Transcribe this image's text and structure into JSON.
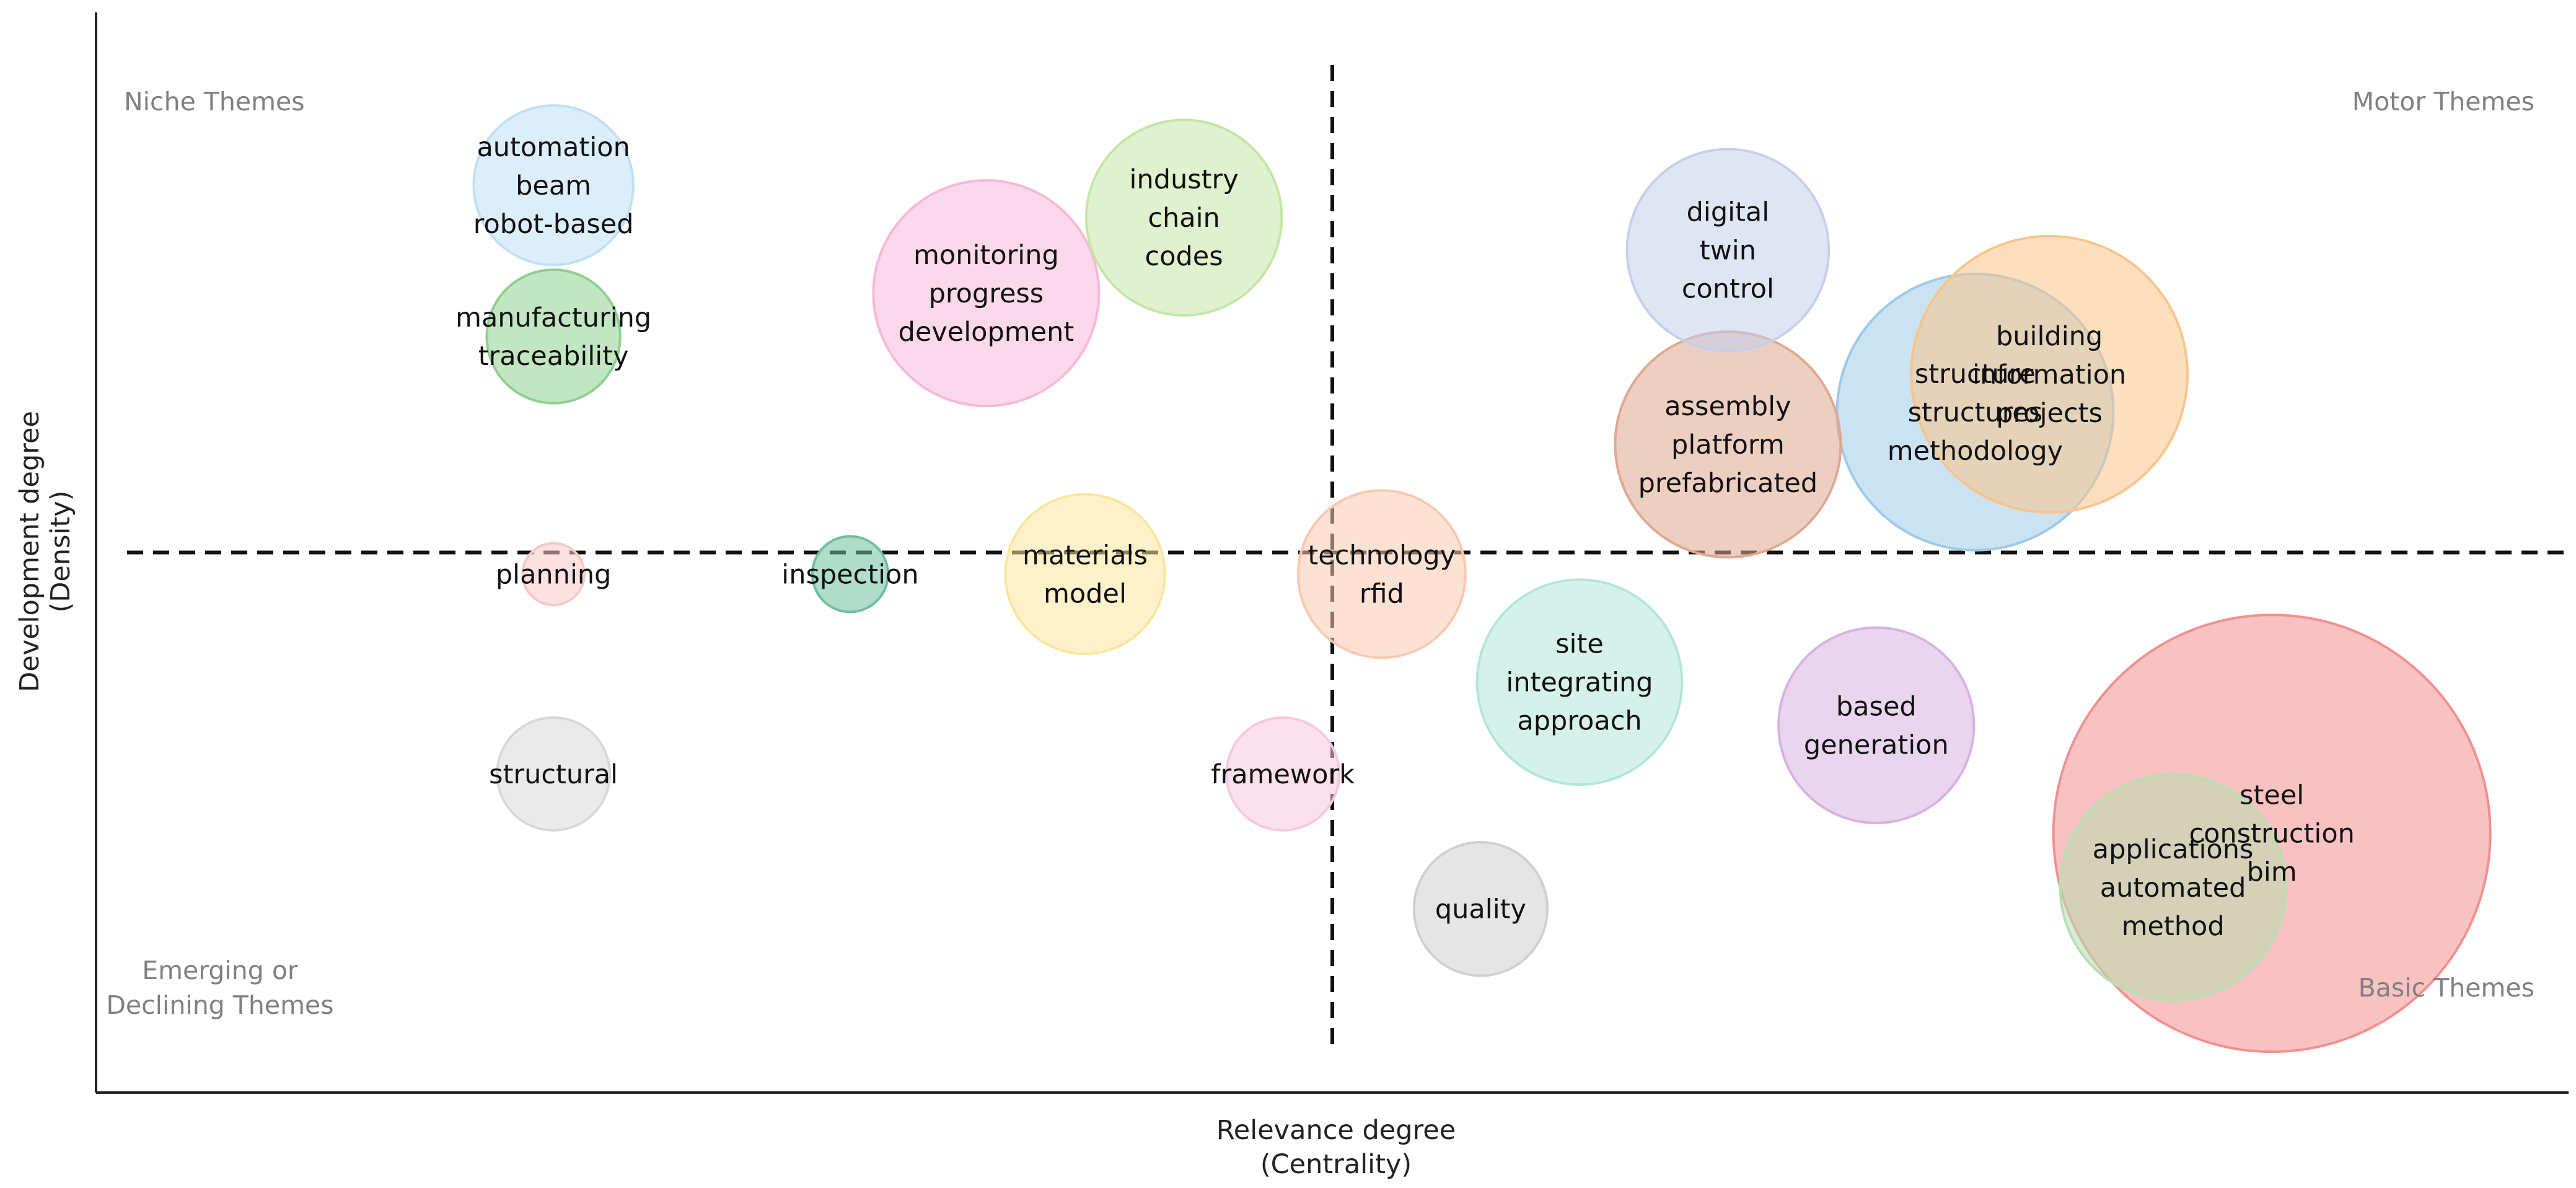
{
  "chart_data": {
    "type": "scatter",
    "subtype": "bubble-thematic-map",
    "xlabel": "Relevance degree",
    "xlabel_sub": "(Centrality)",
    "ylabel": "Development degree",
    "ylabel_sub": "(Density)",
    "xlim": [
      0,
      100
    ],
    "ylim": [
      0,
      100
    ],
    "divider": {
      "x": 50,
      "y": 50
    },
    "quadrants": {
      "top_left": "Niche Themes",
      "top_right": "Motor Themes",
      "bottom_left": [
        "Emerging or",
        "Declining Themes"
      ],
      "bottom_right": "Basic Themes"
    },
    "clusters": [
      {
        "labels": [
          "automation",
          "beam",
          "robot-based"
        ],
        "x": 18.5,
        "y": 84,
        "size": 2.0,
        "color": "#bfe0f5"
      },
      {
        "labels": [
          "manufacturing",
          "traceability"
        ],
        "x": 18.5,
        "y": 70,
        "size": 1.4,
        "color": "#8fd08f"
      },
      {
        "labels": [
          "monitoring",
          "progress",
          "development"
        ],
        "x": 36,
        "y": 74,
        "size": 4.0,
        "color": "#f8b8d8"
      },
      {
        "labels": [
          "industry",
          "chain",
          "codes"
        ],
        "x": 44,
        "y": 81,
        "size": 3.0,
        "color": "#c4e6a6"
      },
      {
        "labels": [
          "digital",
          "twin",
          "control"
        ],
        "x": 66,
        "y": 78,
        "size": 3.2,
        "color": "#c5d0ea"
      },
      {
        "labels": [
          "assembly",
          "platform",
          "prefabricated"
        ],
        "x": 66,
        "y": 60,
        "size": 4.0,
        "color": "#dfa890"
      },
      {
        "labels": [
          "structure",
          "structures",
          "methodology"
        ],
        "x": 76,
        "y": 63,
        "size": 6.0,
        "color": "#9ecae8"
      },
      {
        "labels": [
          "building",
          "information",
          "projects"
        ],
        "x": 79,
        "y": 66.5,
        "size": 6.0,
        "color": "#f9c48a"
      },
      {
        "labels": [
          "planning"
        ],
        "x": 18.5,
        "y": 48,
        "size": 0.3,
        "color": "#f8c8c8"
      },
      {
        "labels": [
          "inspection"
        ],
        "x": 30.5,
        "y": 48,
        "size": 0.45,
        "color": "#6fbfa0"
      },
      {
        "labels": [
          "materials",
          "model"
        ],
        "x": 40,
        "y": 48,
        "size": 2.0,
        "color": "#fbe59e"
      },
      {
        "labels": [
          "technology",
          "rfid"
        ],
        "x": 52,
        "y": 48,
        "size": 2.2,
        "color": "#fac8b0"
      },
      {
        "labels": [
          "site",
          "integrating",
          "approach"
        ],
        "x": 60,
        "y": 38,
        "size": 3.3,
        "color": "#b2e6d8"
      },
      {
        "labels": [
          "based",
          "generation"
        ],
        "x": 72,
        "y": 34,
        "size": 3.0,
        "color": "#d8b2e2"
      },
      {
        "labels": [
          "structural"
        ],
        "x": 18.5,
        "y": 29.5,
        "size": 1.0,
        "color": "#d8d8d8"
      },
      {
        "labels": [
          "framework"
        ],
        "x": 48,
        "y": 29.5,
        "size": 1.0,
        "color": "#f8c8dc"
      },
      {
        "labels": [
          "quality"
        ],
        "x": 56,
        "y": 17,
        "size": 1.4,
        "color": "#d0d0d0"
      },
      {
        "labels": [
          "steel",
          "construction",
          "bim"
        ],
        "x": 88,
        "y": 24,
        "size": 15.0,
        "color": "#f29090"
      },
      {
        "labels": [
          "applications",
          "automated",
          "method"
        ],
        "x": 84,
        "y": 19,
        "size": 4.0,
        "color": "#b8dfb2"
      }
    ]
  }
}
